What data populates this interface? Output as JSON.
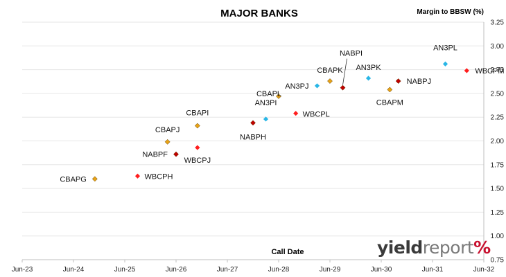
{
  "chart_data": {
    "type": "scatter",
    "title": "MAJOR BANKS",
    "xlabel": "Call Date",
    "ylabel": "Margin to BBSW (%)",
    "x_ticks": [
      "Jun-23",
      "Jun-24",
      "Jun-25",
      "Jun-26",
      "Jun-27",
      "Jun-28",
      "Jun-29",
      "Jun-30",
      "Jun-31",
      "Jun-32"
    ],
    "y_ticks": [
      "0.75",
      "1.00",
      "1.25",
      "1.50",
      "1.75",
      "2.00",
      "2.25",
      "2.50",
      "2.75",
      "3.00",
      "3.25"
    ],
    "ylim": [
      0.75,
      3.25
    ],
    "xlim": [
      "Jun-23",
      "Jun-32"
    ],
    "grid": "horizontal",
    "colors": {
      "CBA": "#e8a317",
      "NAB": "#c00000",
      "WBC": "#ff1e1e",
      "ANZ": "#29b6e6"
    },
    "points": [
      {
        "name": "CBAPG",
        "issuer": "CBA",
        "x": "Nov-24",
        "y": 1.6
      },
      {
        "name": "WBCPH",
        "issuer": "WBC",
        "x": "Sep-25",
        "y": 1.63
      },
      {
        "name": "NABPF",
        "issuer": "NAB",
        "x": "Jun-26",
        "y": 1.86
      },
      {
        "name": "CBAPJ",
        "issuer": "CBA",
        "x": "Apr-26",
        "y": 1.99
      },
      {
        "name": "WBCPJ",
        "issuer": "WBC",
        "x": "Nov-26",
        "y": 1.93
      },
      {
        "name": "CBAPI",
        "issuer": "CBA",
        "x": "Nov-26",
        "y": 2.16
      },
      {
        "name": "NABPH",
        "issuer": "NAB",
        "x": "Dec-27",
        "y": 2.19
      },
      {
        "name": "AN3PI",
        "issuer": "ANZ",
        "x": "Mar-28",
        "y": 2.23
      },
      {
        "name": "CBAPL",
        "issuer": "CBA",
        "x": "Jun-28",
        "y": 2.47
      },
      {
        "name": "WBCPL",
        "issuer": "WBC",
        "x": "Oct-28",
        "y": 2.29
      },
      {
        "name": "AN3PJ",
        "issuer": "ANZ",
        "x": "Mar-29",
        "y": 2.58
      },
      {
        "name": "CBAPK",
        "issuer": "CBA",
        "x": "Jun-29",
        "y": 2.63
      },
      {
        "name": "NABPI",
        "issuer": "NAB",
        "x": "Sep-29",
        "y": 2.56
      },
      {
        "name": "AN3PK",
        "issuer": "ANZ",
        "x": "Mar-30",
        "y": 2.66
      },
      {
        "name": "CBAPM",
        "issuer": "CBA",
        "x": "Aug-30",
        "y": 2.54
      },
      {
        "name": "NABPJ",
        "issuer": "NAB",
        "x": "Oct-30",
        "y": 2.63
      },
      {
        "name": "AN3PL",
        "issuer": "ANZ",
        "x": "Sep-31",
        "y": 2.81
      },
      {
        "name": "WBCPM",
        "issuer": "WBC",
        "x": "Feb-32",
        "y": 2.74
      }
    ]
  },
  "brand": {
    "part1": "yield",
    "part2": "report",
    "part3": "%"
  }
}
